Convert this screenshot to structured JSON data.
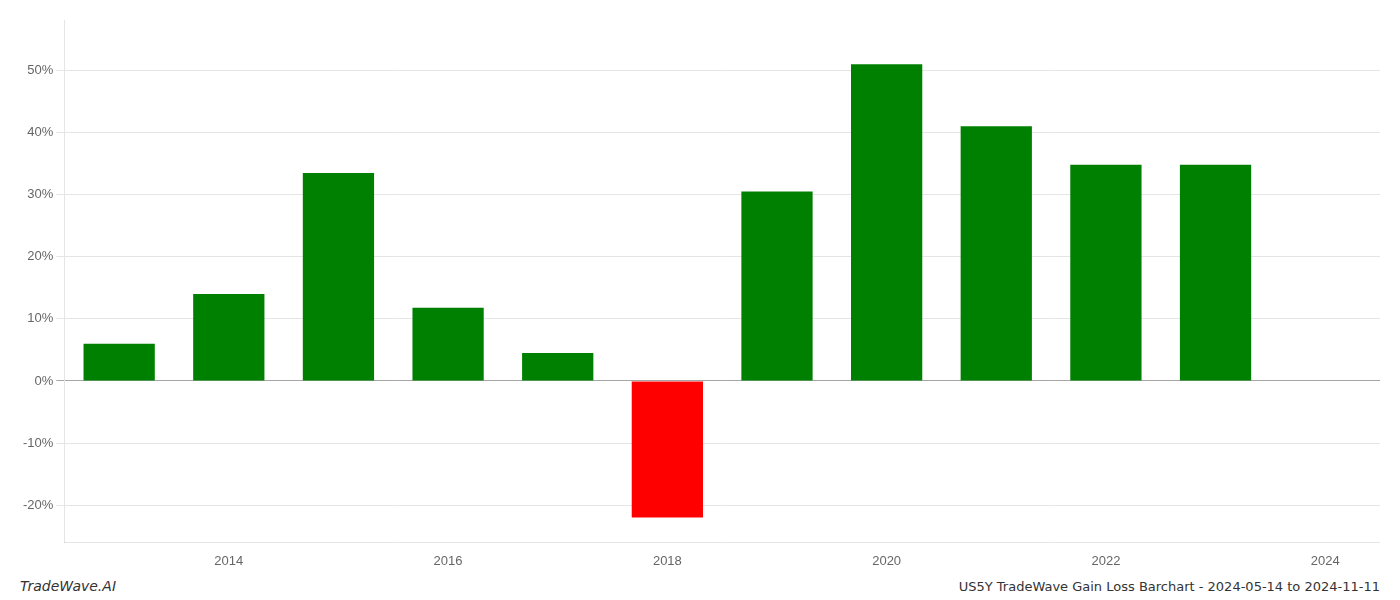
{
  "chart_data": {
    "type": "bar",
    "title": "US5Y TradeWave Gain Loss Barchart - 2024-05-14 to 2024-11-11",
    "annotations": [
      "TradeWave.AI"
    ],
    "x": [
      2013,
      2014,
      2015,
      2016,
      2017,
      2018,
      2019,
      2020,
      2021,
      2022,
      2023
    ],
    "values": [
      6.0,
      14.0,
      33.5,
      11.8,
      4.5,
      -22.0,
      30.5,
      51.0,
      41.0,
      34.8,
      34.8
    ],
    "colors": [
      "#008000",
      "#008000",
      "#008000",
      "#008000",
      "#008000",
      "#ff0000",
      "#008000",
      "#008000",
      "#008000",
      "#008000",
      "#008000"
    ],
    "xlim": [
      2012.5,
      2024.5
    ],
    "xticks": [
      2014,
      2016,
      2018,
      2020,
      2022,
      2024
    ],
    "ylim": [
      -26,
      58
    ],
    "yticks": [
      {
        "value": -20,
        "label": "-20%"
      },
      {
        "value": -10,
        "label": "-10%"
      },
      {
        "value": 0,
        "label": "0%"
      },
      {
        "value": 10,
        "label": "10%"
      },
      {
        "value": 20,
        "label": "20%"
      },
      {
        "value": 30,
        "label": "30%"
      },
      {
        "value": 40,
        "label": "40%"
      },
      {
        "value": 50,
        "label": "50%"
      }
    ],
    "grid": "y"
  }
}
